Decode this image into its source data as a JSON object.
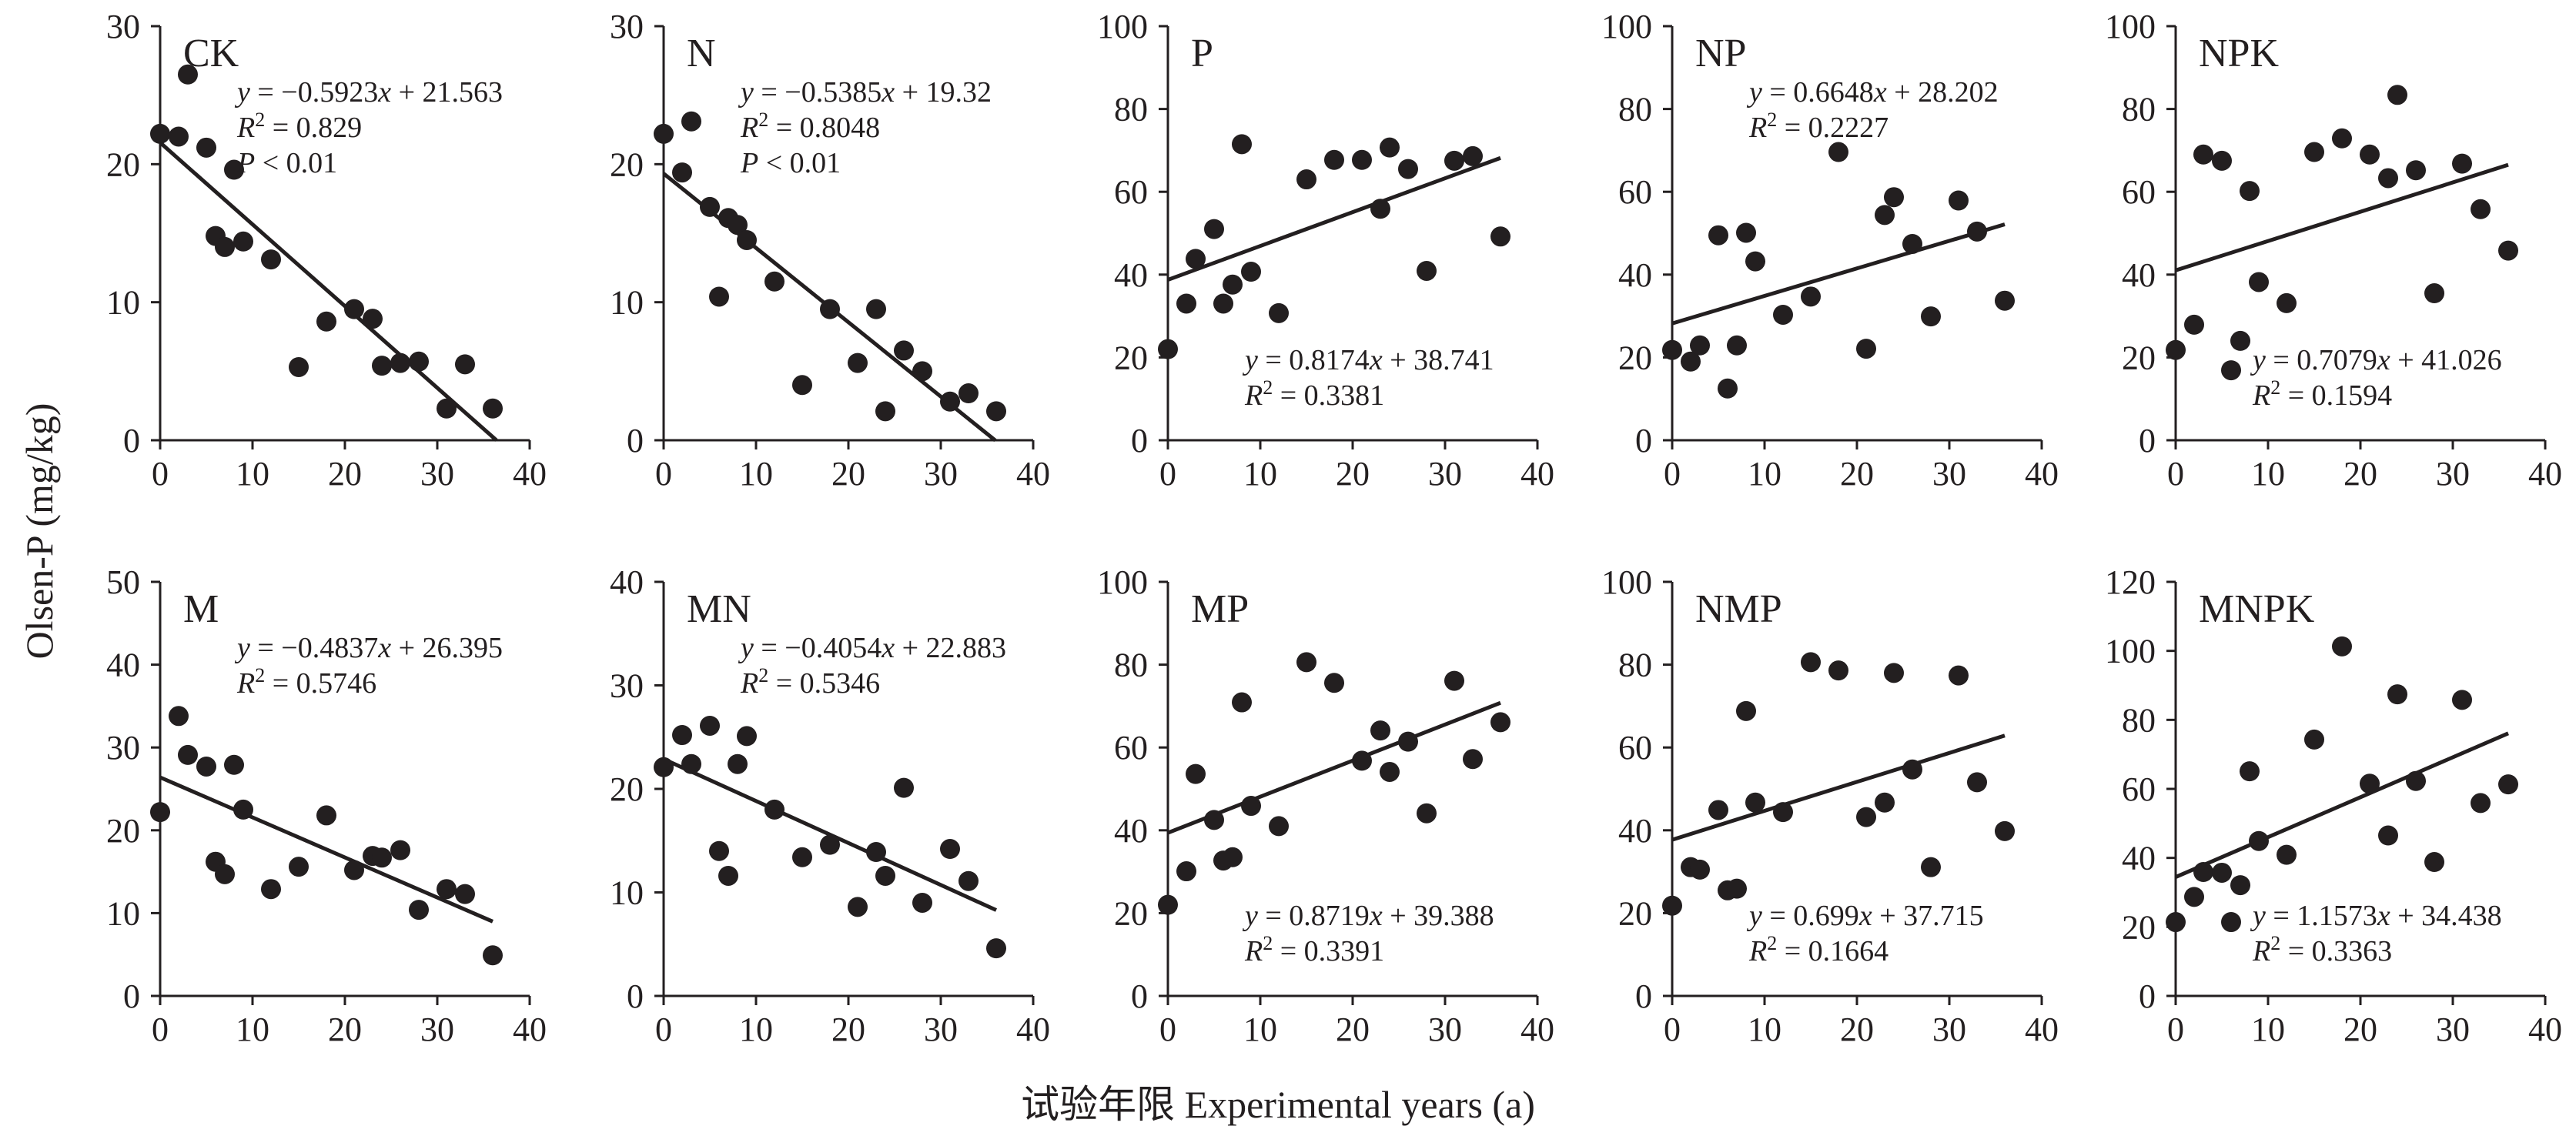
{
  "figure": {
    "ylabel": "Olsen-P (mg/kg)",
    "xlabel": "试验年限 Experimental years (a)"
  },
  "chart_data": [
    {
      "type": "scatter",
      "title": "CK",
      "xlim": [
        0,
        40
      ],
      "ylim": [
        0,
        30
      ],
      "xticks": [
        0,
        10,
        20,
        30,
        40
      ],
      "yticks": [
        0,
        10,
        20,
        30
      ],
      "x": [
        0,
        2,
        3,
        5,
        6,
        7,
        8,
        9,
        12,
        15,
        18,
        21,
        23,
        24,
        26,
        28,
        31,
        33,
        36
      ],
      "y": [
        22.2,
        22,
        26.5,
        21.2,
        14.8,
        14,
        19.6,
        14.4,
        13.1,
        5.3,
        8.6,
        9.5,
        8.8,
        5.4,
        5.6,
        5.7,
        2.3,
        5.5,
        2.3
      ],
      "fit": {
        "slope": -0.5923,
        "intercept": 21.563,
        "x": [
          0,
          36.4
        ]
      },
      "annotations": [
        "y = −0.5923x + 21.563",
        "R2 = 0.829",
        "P < 0.01"
      ],
      "eq_pos": "top-right"
    },
    {
      "type": "scatter",
      "title": "N",
      "xlim": [
        0,
        40
      ],
      "ylim": [
        0,
        30
      ],
      "xticks": [
        0,
        10,
        20,
        30,
        40
      ],
      "yticks": [
        0,
        10,
        20,
        30
      ],
      "x": [
        0,
        2,
        3,
        5,
        6,
        7,
        8,
        9,
        12,
        15,
        18,
        21,
        23,
        24,
        26,
        28,
        31,
        33,
        36
      ],
      "y": [
        22.2,
        19.4,
        23.1,
        16.9,
        10.4,
        16.1,
        15.6,
        14.5,
        11.5,
        4,
        9.5,
        5.6,
        9.5,
        2.1,
        6.5,
        5,
        2.8,
        3.4,
        2.1
      ],
      "fit": {
        "slope": -0.5385,
        "intercept": 19.32,
        "x": [
          0,
          35.9
        ]
      },
      "annotations": [
        "y = −0.5385x + 19.32",
        "R2 = 0.8048",
        "P < 0.01"
      ],
      "eq_pos": "top-right"
    },
    {
      "type": "scatter",
      "title": "P",
      "xlim": [
        0,
        40
      ],
      "ylim": [
        0,
        100
      ],
      "xticks": [
        0,
        10,
        20,
        30,
        40
      ],
      "yticks": [
        0,
        20,
        40,
        60,
        80,
        100
      ],
      "x": [
        0,
        2,
        3,
        5,
        6,
        7,
        8,
        9,
        12,
        15,
        18,
        21,
        23,
        24,
        26,
        28,
        31,
        33,
        36
      ],
      "y": [
        22,
        33,
        43.8,
        51,
        33,
        37.6,
        71.5,
        40.7,
        30.7,
        63,
        67.7,
        67.7,
        55.9,
        70.7,
        65.5,
        40.9,
        67.5,
        68.6,
        49.2
      ],
      "fit": {
        "slope": 0.8174,
        "intercept": 38.741,
        "x": [
          0,
          36
        ]
      },
      "annotations": [
        "y = 0.8174x + 38.741",
        "R2 = 0.3381"
      ],
      "eq_pos": "bottom-right"
    },
    {
      "type": "scatter",
      "title": "NP",
      "xlim": [
        0,
        40
      ],
      "ylim": [
        0,
        100
      ],
      "xticks": [
        0,
        10,
        20,
        30,
        40
      ],
      "yticks": [
        0,
        20,
        40,
        60,
        80,
        100
      ],
      "x": [
        0,
        2,
        3,
        5,
        6,
        7,
        8,
        9,
        12,
        15,
        18,
        21,
        23,
        24,
        26,
        28,
        31,
        33,
        36
      ],
      "y": [
        21.8,
        19,
        22.9,
        49.5,
        12.5,
        22.9,
        50.1,
        43.2,
        30.3,
        34.7,
        69.6,
        22.1,
        54.4,
        58.7,
        47.4,
        29.9,
        57.9,
        50.4,
        33.7
      ],
      "fit": {
        "slope": 0.6648,
        "intercept": 28.202,
        "x": [
          0,
          36
        ]
      },
      "annotations": [
        "y = 0.6648x + 28.202",
        "R2 = 0.2227"
      ],
      "eq_pos": "top-right"
    },
    {
      "type": "scatter",
      "title": "NPK",
      "xlim": [
        0,
        40
      ],
      "ylim": [
        0,
        100
      ],
      "xticks": [
        0,
        10,
        20,
        30,
        40
      ],
      "yticks": [
        0,
        20,
        40,
        60,
        80,
        100
      ],
      "x": [
        0,
        2,
        3,
        5,
        6,
        7,
        8,
        9,
        12,
        15,
        18,
        21,
        23,
        24,
        26,
        28,
        31,
        33,
        36
      ],
      "y": [
        21.8,
        27.9,
        69,
        67.5,
        16.9,
        24,
        60.2,
        38.2,
        33.1,
        69.6,
        72.9,
        69,
        63.3,
        83.4,
        65.2,
        35.5,
        66.8,
        55.8,
        45.8
      ],
      "fit": {
        "slope": 0.7079,
        "intercept": 41.026,
        "x": [
          0,
          36
        ]
      },
      "annotations": [
        "y = 0.7079x + 41.026",
        "R2 = 0.1594"
      ],
      "eq_pos": "bottom-right"
    },
    {
      "type": "scatter",
      "title": "M",
      "xlim": [
        0,
        40
      ],
      "ylim": [
        0,
        50
      ],
      "xticks": [
        0,
        10,
        20,
        30,
        40
      ],
      "yticks": [
        0,
        10,
        20,
        30,
        40,
        50
      ],
      "x": [
        0,
        2,
        3,
        5,
        6,
        7,
        8,
        9,
        12,
        15,
        18,
        21,
        23,
        24,
        26,
        28,
        31,
        33,
        36
      ],
      "y": [
        22.2,
        33.8,
        29.1,
        27.7,
        16.2,
        14.7,
        27.9,
        22.5,
        12.9,
        15.6,
        21.8,
        15.2,
        16.9,
        16.7,
        17.6,
        10.4,
        12.9,
        12.3,
        4.9
      ],
      "fit": {
        "slope": -0.4837,
        "intercept": 26.395,
        "x": [
          0,
          36
        ]
      },
      "annotations": [
        "y = −0.4837x + 26.395",
        "R2 = 0.5746"
      ],
      "eq_pos": "top-right"
    },
    {
      "type": "scatter",
      "title": "MN",
      "xlim": [
        0,
        40
      ],
      "ylim": [
        0,
        40
      ],
      "xticks": [
        0,
        10,
        20,
        30,
        40
      ],
      "yticks": [
        0,
        10,
        20,
        30,
        40
      ],
      "x": [
        0,
        2,
        3,
        5,
        6,
        7,
        8,
        9,
        12,
        15,
        18,
        21,
        23,
        24,
        26,
        28,
        31,
        33,
        36
      ],
      "y": [
        22.1,
        25.2,
        22.4,
        26.1,
        14,
        11.6,
        22.4,
        25.1,
        18,
        13.4,
        14.6,
        8.6,
        13.9,
        11.6,
        20.1,
        9,
        14.2,
        11.1,
        4.6
      ],
      "fit": {
        "slope": -0.4054,
        "intercept": 22.883,
        "x": [
          0,
          36
        ]
      },
      "annotations": [
        "y = −0.4054x + 22.883",
        "R2 = 0.5346"
      ],
      "eq_pos": "top-right"
    },
    {
      "type": "scatter",
      "title": "MP",
      "xlim": [
        0,
        40
      ],
      "ylim": [
        0,
        100
      ],
      "xticks": [
        0,
        10,
        20,
        30,
        40
      ],
      "yticks": [
        0,
        20,
        40,
        60,
        80,
        100
      ],
      "x": [
        0,
        2,
        3,
        5,
        6,
        7,
        8,
        9,
        12,
        15,
        18,
        21,
        23,
        24,
        26,
        28,
        31,
        33,
        36
      ],
      "y": [
        22,
        30.1,
        53.6,
        42.5,
        32.7,
        33.5,
        70.9,
        45.9,
        41,
        80.6,
        75.6,
        56.8,
        64.1,
        54.1,
        61.4,
        44.1,
        76.1,
        57.2,
        66.1
      ],
      "fit": {
        "slope": 0.8719,
        "intercept": 39.388,
        "x": [
          0,
          36
        ]
      },
      "annotations": [
        "y = 0.8719x + 39.388",
        "R2 = 0.3391"
      ],
      "eq_pos": "bottom-right"
    },
    {
      "type": "scatter",
      "title": "NMP",
      "xlim": [
        0,
        40
      ],
      "ylim": [
        0,
        100
      ],
      "xticks": [
        0,
        10,
        20,
        30,
        40
      ],
      "yticks": [
        0,
        20,
        40,
        60,
        80,
        100
      ],
      "x": [
        0,
        2,
        3,
        5,
        6,
        7,
        8,
        9,
        12,
        15,
        18,
        21,
        23,
        24,
        26,
        28,
        31,
        33,
        36
      ],
      "y": [
        21.8,
        31.1,
        30.5,
        44.9,
        25.5,
        25.9,
        68.8,
        46.7,
        44.4,
        80.6,
        78.6,
        43.2,
        46.7,
        78,
        54.7,
        31.1,
        77.4,
        51.6,
        39.8
      ],
      "fit": {
        "slope": 0.699,
        "intercept": 37.715,
        "x": [
          0,
          36
        ]
      },
      "annotations": [
        "y = 0.699x + 37.715",
        "R2 = 0.1664"
      ],
      "eq_pos": "bottom-right"
    },
    {
      "type": "scatter",
      "title": "MNPK",
      "xlim": [
        0,
        40
      ],
      "ylim": [
        0,
        120
      ],
      "xticks": [
        0,
        10,
        20,
        30,
        40
      ],
      "yticks": [
        0,
        20,
        40,
        60,
        80,
        100,
        120
      ],
      "x": [
        0,
        2,
        3,
        5,
        6,
        7,
        8,
        9,
        12,
        15,
        18,
        21,
        23,
        24,
        26,
        28,
        31,
        33,
        36
      ],
      "y": [
        21.4,
        28.7,
        35.9,
        35.7,
        21.4,
        32.1,
        65.1,
        44.9,
        40.9,
        74.3,
        101.3,
        61.5,
        46.5,
        87.4,
        62.3,
        38.8,
        85.8,
        55.9,
        61.3
      ],
      "fit": {
        "slope": 1.1573,
        "intercept": 34.438,
        "x": [
          0,
          36
        ]
      },
      "annotations": [
        "y = 1.1573x + 34.438",
        "R2 = 0.3363"
      ],
      "eq_pos": "bottom-right"
    }
  ]
}
